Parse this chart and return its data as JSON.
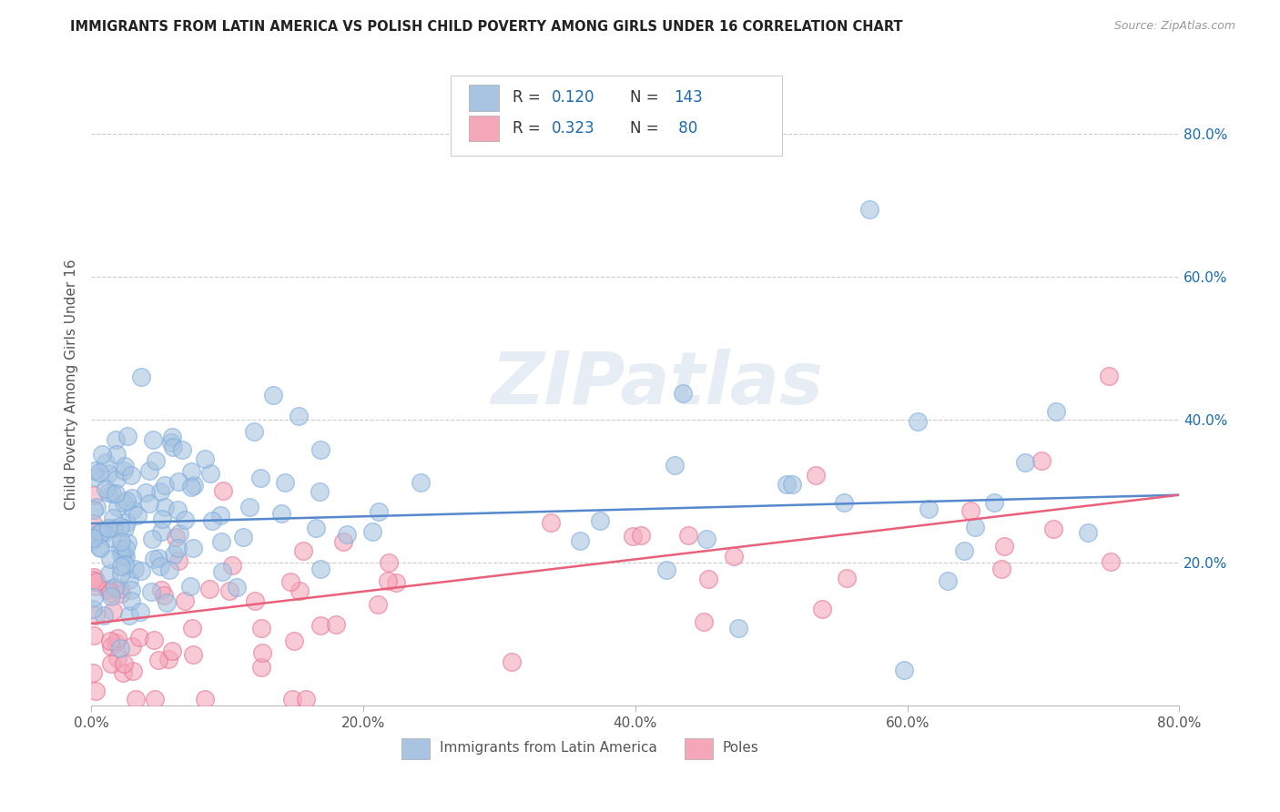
{
  "title": "IMMIGRANTS FROM LATIN AMERICA VS POLISH CHILD POVERTY AMONG GIRLS UNDER 16 CORRELATION CHART",
  "source": "Source: ZipAtlas.com",
  "ylabel": "Child Poverty Among Girls Under 16",
  "xlim": [
    0.0,
    0.8
  ],
  "ylim": [
    0.0,
    0.9
  ],
  "xtick_labels": [
    "0.0%",
    "20.0%",
    "40.0%",
    "60.0%",
    "80.0%"
  ],
  "xtick_values": [
    0.0,
    0.2,
    0.4,
    0.6,
    0.8
  ],
  "ytick_labels": [
    "20.0%",
    "40.0%",
    "60.0%",
    "80.0%"
  ],
  "ytick_values": [
    0.2,
    0.4,
    0.6,
    0.8
  ],
  "watermark": "ZIPatlas",
  "series1_color": "#a8c4e0",
  "series2_color": "#f4a7b9",
  "series1_edge_color": "#7aabe0",
  "series2_edge_color": "#e87090",
  "series1_line_color": "#5588cc",
  "series2_line_color": "#e8607a",
  "series1_label": "Immigrants from Latin America",
  "series2_label": "Poles",
  "series1_R": "0.120",
  "series1_N": "143",
  "series2_R": "0.323",
  "series2_N": " 80",
  "legend_text_color": "#1a6aad",
  "background_color": "#ffffff",
  "grid_color": "#cccccc",
  "title_color": "#222222",
  "line1_start_y": 0.255,
  "line1_end_y": 0.295,
  "line2_start_y": 0.115,
  "line2_end_y": 0.295
}
